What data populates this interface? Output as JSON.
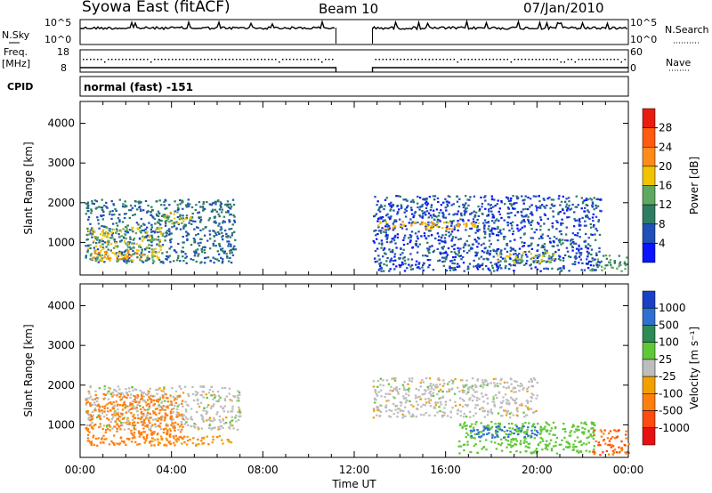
{
  "header": {
    "station": "Syowa East (fitACF)",
    "beam": "Beam 10",
    "date": "07/Jan/2010"
  },
  "status_panels": {
    "nsky_label": "N.Sky",
    "nsky_top_tick": "10^5",
    "nsky_bottom_tick": "10^0",
    "nsearch_label": "N.Search",
    "nsearch_top_tick": "10^5",
    "nsearch_bottom_tick": "10^0",
    "freq_label_1": "Freq.",
    "freq_label_2": "[MHz]",
    "freq_top_tick": "18",
    "freq_bottom_tick": "8",
    "nave_label": "Nave",
    "nave_top_tick": "60",
    "nave_bottom_tick": "0",
    "cpid_label": "CPID",
    "cpid_value": "normal (fast) -151"
  },
  "chart_data": [
    {
      "type": "heatmap",
      "panel": "power",
      "xlabel": "Time UT",
      "ylabel": "Slant Range [km]",
      "ylim": [
        180,
        4550
      ],
      "xlim": [
        "00:00",
        "00:00"
      ],
      "x_ticks": [
        "00:00",
        "04:00",
        "08:00",
        "12:00",
        "16:00",
        "20:00",
        "00:00"
      ],
      "y_ticks": [
        1000,
        2000,
        3000,
        4000
      ],
      "colorbar_label": "Power [dB]",
      "colorbar_ticks": [
        4,
        8,
        12,
        16,
        20,
        24,
        28
      ],
      "colorbar_colors": [
        "#0a14ff",
        "#1f4fb8",
        "#2e7d63",
        "#5fa860",
        "#f2c300",
        "#ff8c1a",
        "#ff5a10",
        "#e81c10"
      ],
      "data_gap_hours": [
        11.2,
        12.8
      ],
      "blobs": [
        {
          "t0": 0.2,
          "t1": 6.8,
          "r0": 500,
          "r1": 2100,
          "value": 8
        },
        {
          "t0": 0.3,
          "t1": 3.6,
          "r0": 550,
          "r1": 1400,
          "value": 16
        },
        {
          "t0": 0.5,
          "t1": 2.8,
          "r0": 600,
          "r1": 820,
          "value": 22
        },
        {
          "t0": 3.5,
          "t1": 4.8,
          "r0": 1500,
          "r1": 1800,
          "value": 16
        },
        {
          "t0": 12.8,
          "t1": 22.8,
          "r0": 300,
          "r1": 2200,
          "value": 6
        },
        {
          "t0": 13.0,
          "t1": 17.5,
          "r0": 1350,
          "r1": 1550,
          "value": 20
        },
        {
          "t0": 18.2,
          "t1": 20.8,
          "r0": 500,
          "r1": 800,
          "value": 16
        },
        {
          "t0": 22.3,
          "t1": 23.9,
          "r0": 300,
          "r1": 700,
          "value": 12
        }
      ]
    },
    {
      "type": "heatmap",
      "panel": "velocity",
      "xlabel": "Time UT",
      "ylabel": "Slant Range [km]",
      "ylim": [
        180,
        4550
      ],
      "xlim": [
        "00:00",
        "00:00"
      ],
      "x_ticks": [
        "00:00",
        "04:00",
        "08:00",
        "12:00",
        "16:00",
        "20:00",
        "00:00"
      ],
      "y_ticks": [
        1000,
        2000,
        3000,
        4000
      ],
      "colorbar_label": "Velocity [m s⁻¹]",
      "colorbar_ticks": [
        1000,
        500,
        100,
        25,
        -25,
        -100,
        -500,
        -1000
      ],
      "colorbar_colors": [
        "#1a40c8",
        "#2f6fd0",
        "#2f8a55",
        "#5fc837",
        "#bdbdbd",
        "#f2a000",
        "#ff7f0e",
        "#ff4a10",
        "#e81010"
      ],
      "data_gap_hours": [
        11.2,
        12.8
      ],
      "blobs": [
        {
          "t0": 0.2,
          "t1": 7.0,
          "r0": 900,
          "r1": 2000,
          "value": 0
        },
        {
          "t0": 0.2,
          "t1": 4.5,
          "r0": 500,
          "r1": 1800,
          "value": -400
        },
        {
          "t0": 2.8,
          "t1": 6.6,
          "r0": 500,
          "r1": 750,
          "value": -90
        },
        {
          "t0": 12.8,
          "t1": 20.0,
          "r0": 1200,
          "r1": 2200,
          "value": 0
        },
        {
          "t0": 16.5,
          "t1": 22.5,
          "r0": 300,
          "r1": 1100,
          "value": 70
        },
        {
          "t0": 17.0,
          "t1": 20.0,
          "r0": 700,
          "r1": 1000,
          "value": 600
        },
        {
          "t0": 22.4,
          "t1": 24.0,
          "r0": 250,
          "r1": 900,
          "value": -500
        }
      ]
    }
  ]
}
